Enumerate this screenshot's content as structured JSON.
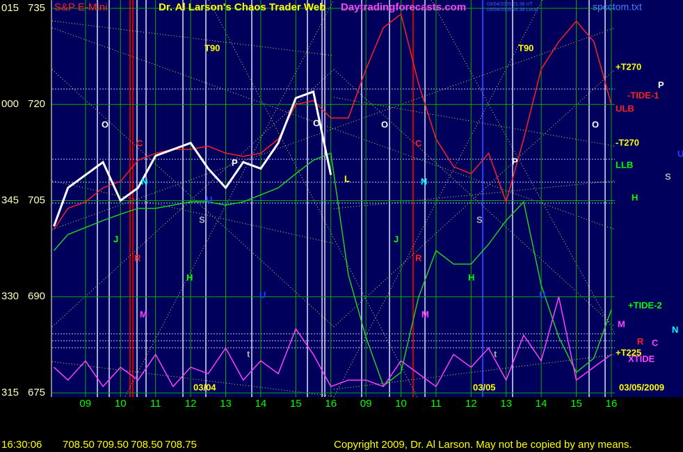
{
  "header": {
    "title": "S&P E-Mini",
    "site_title": "Dr. Al Larson's Chaos Trader Web",
    "site": "Daytradingforecasts.com",
    "file": "spcctom.txt",
    "stamp_ut": "03/04/2009 21:38 UT",
    "stamp_local": "03/04/2009 16:38 Local"
  },
  "chart_data": {
    "type": "line",
    "x": [
      8.1,
      8.5,
      9,
      9.5,
      10,
      10.5,
      11,
      11.5,
      12,
      12.5,
      13,
      13.5,
      14,
      14.5,
      15,
      15.5,
      16,
      16.5,
      17,
      17.5,
      18,
      18.5,
      19,
      19.5,
      20,
      20.5,
      21,
      21.5,
      22,
      22.5,
      23,
      23.5,
      24
    ],
    "series": [
      {
        "color": "#ff2020",
        "values": [
          700.5,
          703.8,
          704.8,
          707,
          708,
          711.3,
          712.4,
          713,
          713,
          713.5,
          712.4,
          711.9,
          712.4,
          714.6,
          720,
          720.6,
          717.9,
          717.9,
          725.5,
          732,
          734.1,
          723.3,
          714.6,
          710.3,
          709.2,
          712.4,
          704.8,
          714.6,
          725.5,
          729.8,
          733,
          729.8,
          720
        ]
      },
      {
        "color": "#20d020",
        "values": [
          697.2,
          699.7,
          700.8,
          701.9,
          702.9,
          703.8,
          703.8,
          704.3,
          704.8,
          704.8,
          704.3,
          704.8,
          705.9,
          707,
          709.2,
          711.3,
          712.4,
          693.4,
          683.7,
          676.1,
          678.2,
          689.9,
          697.2,
          695.1,
          695.1,
          698.2,
          701.9,
          704.8,
          691.8,
          683.7,
          678.2,
          680.4,
          688
        ]
      },
      {
        "color": "#ff40ff",
        "values": [
          679,
          677,
          680,
          676,
          679,
          677,
          681,
          676,
          679,
          678,
          682,
          677,
          680,
          678,
          685,
          681,
          676,
          677,
          677,
          676,
          680,
          678,
          676,
          681,
          679,
          682,
          677,
          684,
          680,
          690,
          677,
          679,
          681
        ]
      },
      {
        "color": "#ffffff",
        "values": [
          701,
          707,
          709,
          711,
          705,
          707,
          712,
          713,
          714,
          710,
          707,
          711,
          710,
          714,
          721,
          722,
          709,
          null,
          null,
          null,
          null,
          null,
          null,
          null,
          null,
          null,
          null,
          null,
          null,
          null,
          null,
          null,
          null
        ]
      }
    ],
    "xlim": [
      8.05,
      24.1
    ],
    "xticks": [
      {
        "value": 9,
        "label": "09"
      },
      10,
      11,
      12,
      13,
      14,
      15,
      16,
      {
        "value": 17,
        "label": "09"
      },
      {
        "value": 18,
        "label": "10"
      },
      {
        "value": 19,
        "label": "11"
      },
      {
        "value": 20,
        "label": "12"
      },
      {
        "value": 21,
        "label": "13"
      },
      {
        "value": 22,
        "label": "14"
      },
      {
        "value": 23,
        "label": "15"
      },
      {
        "value": 24,
        "label": "16"
      }
    ],
    "ylim": [
      675,
      735
    ],
    "yticks": [
      675,
      690,
      705,
      720,
      735
    ],
    "y2lim": [
      315,
      375
    ],
    "y2ticks": [
      315,
      330,
      345,
      {
        "value": 360,
        "label": "000"
      },
      {
        "value": 375,
        "label": "015"
      }
    ],
    "grid": true,
    "grid_color": "#00b000",
    "annotations": [
      {
        "text": "T90",
        "color": "#ffff00"
      },
      {
        "text": "T90",
        "color": "#ffff00"
      },
      {
        "text": "O",
        "color": "#ffffff"
      },
      {
        "text": "O",
        "color": "#ffffff"
      },
      {
        "text": "O",
        "color": "#ffffff"
      },
      {
        "text": "O",
        "color": "#ffffff"
      },
      {
        "text": "C",
        "color": "#ff2020"
      },
      {
        "text": "C",
        "color": "#ff2020"
      },
      {
        "text": "N",
        "color": "#00ffff"
      },
      {
        "text": "N",
        "color": "#00ffff"
      },
      {
        "text": "P",
        "color": "#ffffff"
      },
      {
        "text": "P",
        "color": "#ffffff"
      },
      {
        "text": "P",
        "color": "#ffffff"
      },
      {
        "text": "S",
        "color": "#b0b0b0"
      },
      {
        "text": "S",
        "color": "#b0b0b0"
      },
      {
        "text": "S",
        "color": "#b0b0b0"
      },
      {
        "text": "H",
        "color": "#00ff00"
      },
      {
        "text": "H",
        "color": "#00ff00"
      },
      {
        "text": "H",
        "color": "#00ff00"
      },
      {
        "text": "J",
        "color": "#00ff00"
      },
      {
        "text": "J",
        "color": "#00ff00"
      },
      {
        "text": "R",
        "color": "#ff2020"
      },
      {
        "text": "R",
        "color": "#ff2020"
      },
      {
        "text": "R",
        "color": "#ff2020"
      },
      {
        "text": "M",
        "color": "#ff40ff"
      },
      {
        "text": "M",
        "color": "#ff40ff"
      },
      {
        "text": "M",
        "color": "#ff40ff"
      },
      {
        "text": "U",
        "color": "#2040ff"
      },
      {
        "text": "U",
        "color": "#2040ff"
      },
      {
        "text": "U",
        "color": "#2040ff"
      },
      {
        "text": "U",
        "color": "#2040ff"
      },
      {
        "text": "L",
        "color": "#ffff00"
      },
      {
        "text": "t",
        "color": "#b0b0b0"
      },
      {
        "text": "t",
        "color": "#b0b0b0"
      },
      {
        "text": "C",
        "color": "#ff40ff"
      },
      {
        "text": "N",
        "color": "#00ffff"
      },
      {
        "text": "+T270",
        "color": "#ffff00"
      },
      {
        "text": "-TIDE-1",
        "color": "#ff2020"
      },
      {
        "text": "ULB",
        "color": "#ff2020"
      },
      {
        "text": "-T270",
        "color": "#ffff00"
      },
      {
        "text": "LLB",
        "color": "#00ff00"
      },
      {
        "text": "+TIDE-2",
        "color": "#00ff00"
      },
      {
        "text": "+T225",
        "color": "#ffff00"
      },
      {
        "text": "XTIDE",
        "color": "#ff40ff"
      },
      {
        "text": "03/04",
        "color": "#ffff00"
      },
      {
        "text": "03/05",
        "color": "#ffff00"
      },
      {
        "text": "03/05/2009",
        "color": "#ffff00"
      }
    ]
  },
  "footer": {
    "time": "16:30:06",
    "prices": [
      "708.50",
      "709.50",
      "708.50",
      "708.75"
    ],
    "copyright": "Copyright 2009, Dr. Al Larson. May not be copied by any means."
  }
}
